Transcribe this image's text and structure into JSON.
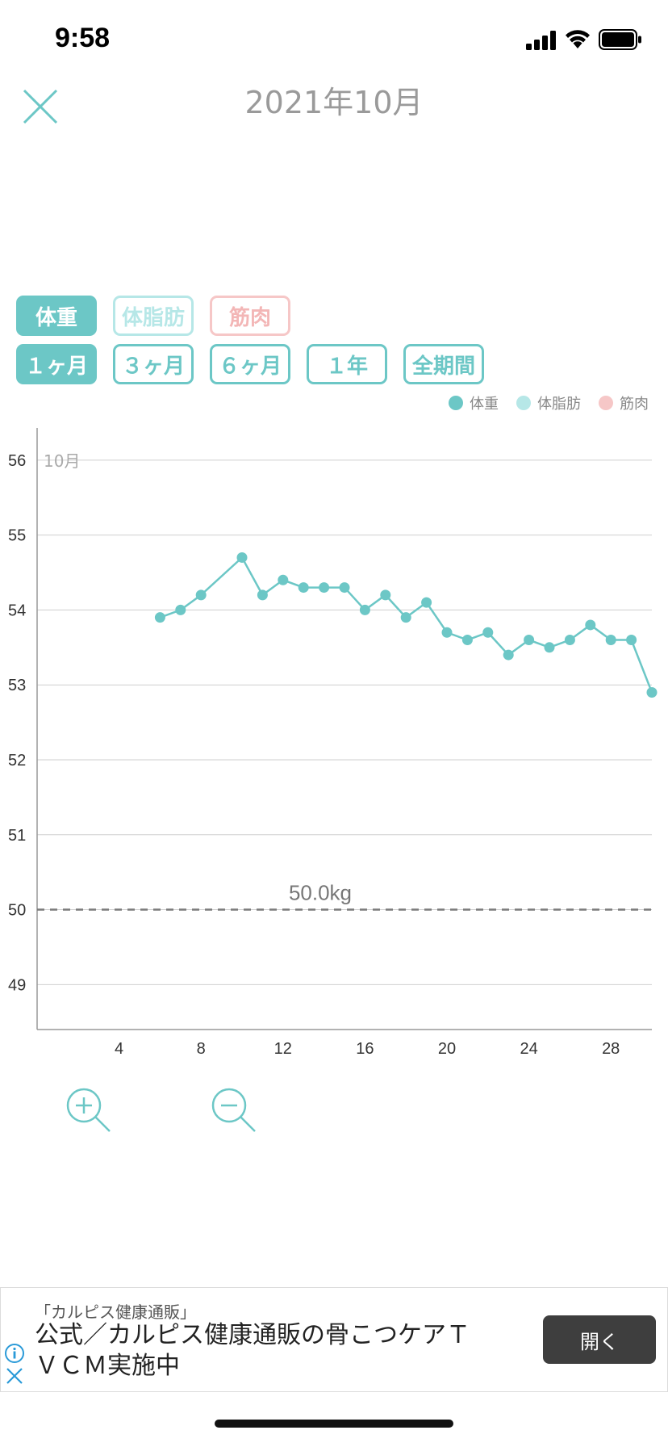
{
  "status_bar": {
    "time": "9:58"
  },
  "header": {
    "title": "2021年10月"
  },
  "type_toggles": [
    {
      "label": "体重",
      "state": "selected"
    },
    {
      "label": "体脂肪",
      "state": "unselected"
    },
    {
      "label": "筋肉",
      "state": "unselected"
    }
  ],
  "period_toggles": [
    {
      "label": "１ヶ月",
      "state": "selected"
    },
    {
      "label": "３ヶ月",
      "state": "unselected"
    },
    {
      "label": "６ヶ月",
      "state": "unselected"
    },
    {
      "label": "１年",
      "state": "unselected"
    },
    {
      "label": "全期間",
      "state": "unselected"
    }
  ],
  "legend": [
    {
      "label": "体重",
      "color": "#6cc7c6"
    },
    {
      "label": "体脂肪",
      "color": "#b6e7e7"
    },
    {
      "label": "筋肉",
      "color": "#f6c7c7"
    }
  ],
  "chart_data": {
    "type": "line",
    "month_label": "10月",
    "x_ticks": [
      "4",
      "8",
      "12",
      "16",
      "20",
      "24",
      "28"
    ],
    "y_ticks": [
      "49",
      "50",
      "51",
      "52",
      "53",
      "54",
      "55",
      "56"
    ],
    "xlim": [
      0,
      30
    ],
    "ylim": [
      48.4,
      56.3
    ],
    "target_line": {
      "value": 50.0,
      "label": "50.0kg"
    },
    "series": [
      {
        "name": "体重",
        "color": "#6cc7c6",
        "points": [
          [
            6,
            53.9
          ],
          [
            7,
            54.0
          ],
          [
            8,
            54.2
          ],
          [
            10,
            54.7
          ],
          [
            11,
            54.2
          ],
          [
            12,
            54.4
          ],
          [
            13,
            54.3
          ],
          [
            14,
            54.3
          ],
          [
            15,
            54.3
          ],
          [
            16,
            54.0
          ],
          [
            17,
            54.2
          ],
          [
            18,
            53.9
          ],
          [
            19,
            54.1
          ],
          [
            20,
            53.7
          ],
          [
            21,
            53.6
          ],
          [
            22,
            53.7
          ],
          [
            23,
            53.4
          ],
          [
            24,
            53.6
          ],
          [
            25,
            53.5
          ],
          [
            26,
            53.6
          ],
          [
            27,
            53.8
          ],
          [
            28,
            53.6
          ],
          [
            29,
            53.6
          ],
          [
            30,
            52.9
          ]
        ]
      }
    ]
  },
  "zoom": {
    "in_icon": "zoom-in-icon",
    "out_icon": "zoom-out-icon"
  },
  "ad": {
    "source": "「カルピス健康通販」",
    "text": "公式／カルピス健康通販の骨こつケアＴＶＣＭ実施中",
    "button": "開く"
  }
}
